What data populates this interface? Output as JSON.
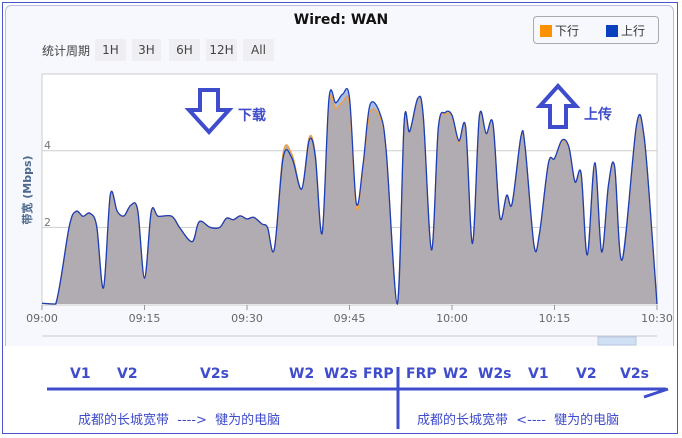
{
  "title": "Wired: WAN",
  "legend": [
    {
      "label": "下行",
      "color": "#ff9000"
    },
    {
      "label": "上行",
      "color": "#0a3fbf"
    }
  ],
  "period": {
    "label": "统计周期",
    "buttons": [
      "1H",
      "3H",
      "6H",
      "12H",
      "All"
    ]
  },
  "annotations": {
    "download": "下载",
    "upload": "上传",
    "download_icon": "arrow-down-icon",
    "upload_icon": "arrow-up-icon",
    "color": "#3f4ccc"
  },
  "route": {
    "left_labels": [
      "V1",
      "V2",
      "V2s",
      "W2",
      "W2s",
      "FRP"
    ],
    "right_labels": [
      "FRP",
      "W2",
      "W2s",
      "V1",
      "V2",
      "V2s"
    ],
    "left_note": "成都的长城宽带  ---->  犍为的电脑",
    "right_note": "成都的长城宽带  <----  犍为的电脑"
  },
  "chart_data": {
    "type": "area",
    "ylabel": "带宽 (Mbps)",
    "yticks": [
      "2",
      "4"
    ],
    "ylim": [
      0,
      6
    ],
    "xlim": [
      "09:00",
      "10:30"
    ],
    "xticks": [
      "09:00",
      "09:15",
      "09:30",
      "09:45",
      "10:00",
      "10:15",
      "10:30"
    ],
    "grid": true,
    "legend_position": "top-right",
    "x_minutes_after_0900": [
      0,
      2,
      4,
      5,
      6,
      7,
      8,
      9,
      10,
      11,
      12,
      13,
      14,
      15,
      16,
      17,
      19,
      20.2,
      22,
      23,
      24.6,
      26,
      27,
      28,
      29,
      30,
      31,
      32.2,
      33,
      34,
      35.3,
      36.6,
      38,
      39.1,
      40,
      41,
      42,
      43,
      44,
      45,
      46,
      47,
      48,
      49.5,
      50.4,
      52,
      53,
      53.8,
      55,
      55.8,
      57,
      58,
      59,
      60,
      61,
      62,
      63,
      64,
      65,
      66,
      67,
      68,
      68.8,
      70.1,
      70.7,
      72,
      72.8,
      74.1,
      75,
      76.1,
      77.1,
      78,
      78.9,
      79.8,
      80.9,
      81.9,
      82.9,
      83.8,
      84.9,
      87,
      88.1,
      89.3,
      90
    ],
    "series": [
      {
        "name": "下行",
        "values": [
          0.02,
          0,
          2.03,
          2.42,
          2.29,
          2.37,
          2.03,
          0.42,
          2.85,
          2.42,
          2.3,
          2.58,
          2.45,
          0.67,
          2.42,
          2.29,
          2.29,
          1.98,
          1.63,
          2.15,
          2,
          2,
          2.24,
          2.2,
          2.3,
          2.22,
          2.26,
          2.09,
          2,
          1.43,
          3.95,
          3.9,
          3,
          4.35,
          3.9,
          1.85,
          5.25,
          5.1,
          5.28,
          5.2,
          2.5,
          3.6,
          5.0,
          4.85,
          3.93,
          0,
          4.76,
          4.5,
          5.37,
          4.89,
          1.41,
          4.59,
          4.95,
          4.9,
          4.22,
          4.6,
          1.58,
          4.89,
          4.45,
          4.7,
          2.27,
          2.84,
          2.62,
          4.38,
          4.1,
          1.53,
          1.84,
          3.67,
          3.8,
          4.25,
          4.08,
          3.19,
          3.41,
          1.28,
          3.69,
          1.36,
          3.11,
          3.59,
          1.15,
          4.67,
          4.39,
          1.76,
          0
        ]
      },
      {
        "name": "上行",
        "values": [
          0.02,
          0,
          2.03,
          2.42,
          2.29,
          2.37,
          2.03,
          0.42,
          2.85,
          2.42,
          2.3,
          2.58,
          2.45,
          0.67,
          2.42,
          2.29,
          2.29,
          1.98,
          1.63,
          2.15,
          2,
          2,
          2.24,
          2.2,
          2.3,
          2.22,
          2.26,
          2.09,
          2,
          1.43,
          3.83,
          3.8,
          3,
          4.28,
          3.85,
          1.85,
          5.37,
          5.25,
          5.48,
          5.38,
          2.63,
          3.67,
          5.2,
          4.95,
          3.93,
          0,
          4.76,
          4.5,
          5.37,
          4.89,
          1.41,
          4.59,
          5.0,
          4.93,
          4.26,
          4.61,
          1.58,
          4.89,
          4.45,
          4.7,
          2.27,
          2.84,
          2.62,
          4.38,
          4.1,
          1.53,
          1.84,
          3.67,
          3.8,
          4.28,
          4.1,
          3.19,
          3.41,
          1.28,
          3.69,
          1.36,
          3.11,
          3.59,
          1.15,
          4.67,
          4.39,
          1.76,
          0
        ]
      }
    ]
  }
}
